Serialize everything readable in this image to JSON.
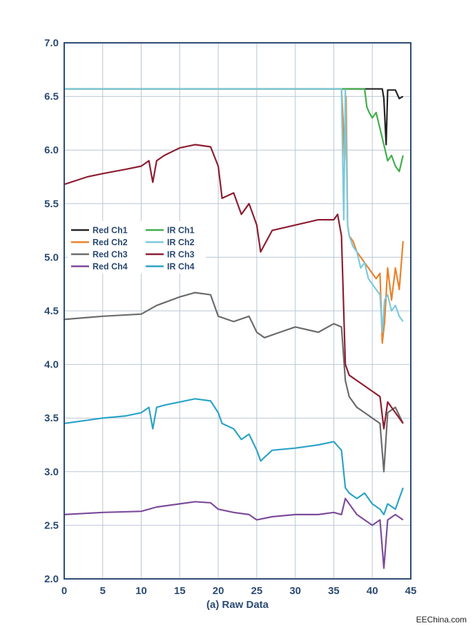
{
  "chart_data": {
    "type": "line",
    "xlabel": "(a) Raw Data",
    "xlim": [
      0,
      45
    ],
    "ylim": [
      2.0,
      7.0
    ],
    "xticks": [
      0,
      5,
      10,
      15,
      20,
      25,
      30,
      35,
      40,
      45
    ],
    "yticks": [
      "2.0",
      "2.5",
      "3.0",
      "3.5",
      "4.0",
      "4.5",
      "5.0",
      "5.5",
      "6.0",
      "6.5",
      "7.0"
    ],
    "grid": true,
    "legend_position": "middle-left",
    "series": [
      {
        "name": "Red Ch1",
        "color": "#222222",
        "x": [
          0,
          36,
          40,
          41.3,
          41.5,
          41.8,
          42,
          42.5,
          43,
          43.5,
          44
        ],
        "y": [
          6.57,
          6.57,
          6.57,
          6.57,
          6.48,
          6.05,
          6.56,
          6.56,
          6.56,
          6.48,
          6.5
        ]
      },
      {
        "name": "Red Ch2",
        "color": "#e8822a",
        "x": [
          0,
          36,
          36.2,
          36.4,
          36.6,
          36.8,
          37,
          37.5,
          38,
          38.5,
          39,
          39.5,
          40,
          40.5,
          41,
          41.3,
          41.6,
          42,
          42.5,
          43,
          43.5,
          44
        ],
        "y": [
          6.57,
          6.57,
          6.3,
          5.9,
          6.5,
          5.3,
          5.2,
          5.15,
          5.05,
          5.0,
          4.95,
          4.9,
          4.85,
          4.8,
          4.85,
          4.2,
          4.4,
          4.9,
          4.6,
          4.9,
          4.7,
          5.15
        ]
      },
      {
        "name": "Red Ch3",
        "color": "#6a6a6a",
        "x": [
          0,
          5,
          10,
          12,
          15,
          17,
          19,
          20,
          22,
          24,
          25,
          26,
          28,
          30,
          33,
          35,
          36,
          36.5,
          37,
          38,
          39,
          40,
          41,
          41.5,
          42,
          43,
          44
        ],
        "y": [
          4.42,
          4.45,
          4.47,
          4.55,
          4.63,
          4.67,
          4.65,
          4.45,
          4.4,
          4.45,
          4.3,
          4.25,
          4.3,
          4.35,
          4.3,
          4.38,
          4.35,
          3.85,
          3.7,
          3.6,
          3.55,
          3.5,
          3.45,
          3.0,
          3.55,
          3.6,
          3.45
        ]
      },
      {
        "name": "Red Ch4",
        "color": "#7b4a9a",
        "x": [
          0,
          5,
          10,
          12,
          15,
          17,
          19,
          20,
          22,
          24,
          25,
          27,
          30,
          33,
          35,
          36,
          36.5,
          37,
          38,
          39,
          40,
          41,
          41.5,
          42,
          43,
          44
        ],
        "y": [
          2.6,
          2.62,
          2.63,
          2.67,
          2.7,
          2.72,
          2.71,
          2.65,
          2.62,
          2.6,
          2.55,
          2.58,
          2.6,
          2.6,
          2.62,
          2.6,
          2.75,
          2.7,
          2.6,
          2.55,
          2.5,
          2.55,
          2.1,
          2.55,
          2.6,
          2.55
        ]
      },
      {
        "name": "IR Ch1",
        "color": "#3fae49",
        "x": [
          0,
          36,
          39,
          39.3,
          39.6,
          40,
          40.5,
          41,
          41.5,
          42,
          42.5,
          43,
          43.5,
          44
        ],
        "y": [
          6.57,
          6.57,
          6.57,
          6.4,
          6.35,
          6.3,
          6.35,
          6.2,
          6.05,
          5.9,
          5.95,
          5.85,
          5.8,
          5.95
        ]
      },
      {
        "name": "IR Ch2",
        "color": "#7cc9dc",
        "x": [
          0,
          36,
          36.3,
          36.5,
          36.8,
          37,
          37.5,
          38,
          38.5,
          39,
          39.5,
          40,
          40.5,
          41,
          41.3,
          41.6,
          42,
          42.5,
          43,
          43.5,
          44
        ],
        "y": [
          6.57,
          6.57,
          5.35,
          6.56,
          5.3,
          5.2,
          5.1,
          5.05,
          4.9,
          4.95,
          4.8,
          4.75,
          4.7,
          4.65,
          4.3,
          4.6,
          4.65,
          4.5,
          4.55,
          4.45,
          4.4
        ]
      },
      {
        "name": "IR Ch3",
        "color": "#8c1c30",
        "x": [
          0,
          3,
          5,
          8,
          10,
          11,
          11.5,
          12,
          13,
          15,
          17,
          19,
          20,
          20.5,
          22,
          23,
          24,
          25,
          25.5,
          27,
          30,
          33,
          35,
          35.5,
          36,
          36.5,
          37,
          38,
          39,
          40,
          41,
          41.5,
          42,
          43,
          44
        ],
        "y": [
          5.68,
          5.75,
          5.78,
          5.82,
          5.85,
          5.9,
          5.7,
          5.9,
          5.95,
          6.02,
          6.05,
          6.03,
          5.85,
          5.55,
          5.6,
          5.4,
          5.5,
          5.3,
          5.05,
          5.25,
          5.3,
          5.35,
          5.35,
          5.4,
          5.2,
          4.0,
          3.9,
          3.85,
          3.8,
          3.75,
          3.7,
          3.4,
          3.65,
          3.55,
          3.45
        ]
      },
      {
        "name": "IR Ch4",
        "color": "#2aa3c7",
        "x": [
          0,
          3,
          5,
          8,
          10,
          11,
          11.5,
          12,
          13,
          15,
          17,
          19,
          20,
          20.5,
          22,
          23,
          24,
          25,
          25.5,
          27,
          30,
          33,
          35,
          36,
          36.5,
          37,
          38,
          39,
          40,
          41,
          41.5,
          42,
          43,
          44
        ],
        "y": [
          3.45,
          3.48,
          3.5,
          3.52,
          3.55,
          3.6,
          3.4,
          3.6,
          3.62,
          3.65,
          3.68,
          3.66,
          3.55,
          3.45,
          3.4,
          3.3,
          3.35,
          3.2,
          3.1,
          3.2,
          3.22,
          3.25,
          3.28,
          3.2,
          2.85,
          2.8,
          2.75,
          2.8,
          2.7,
          2.65,
          2.6,
          2.7,
          2.65,
          2.85
        ]
      }
    ]
  },
  "watermark": "EEChina.com"
}
